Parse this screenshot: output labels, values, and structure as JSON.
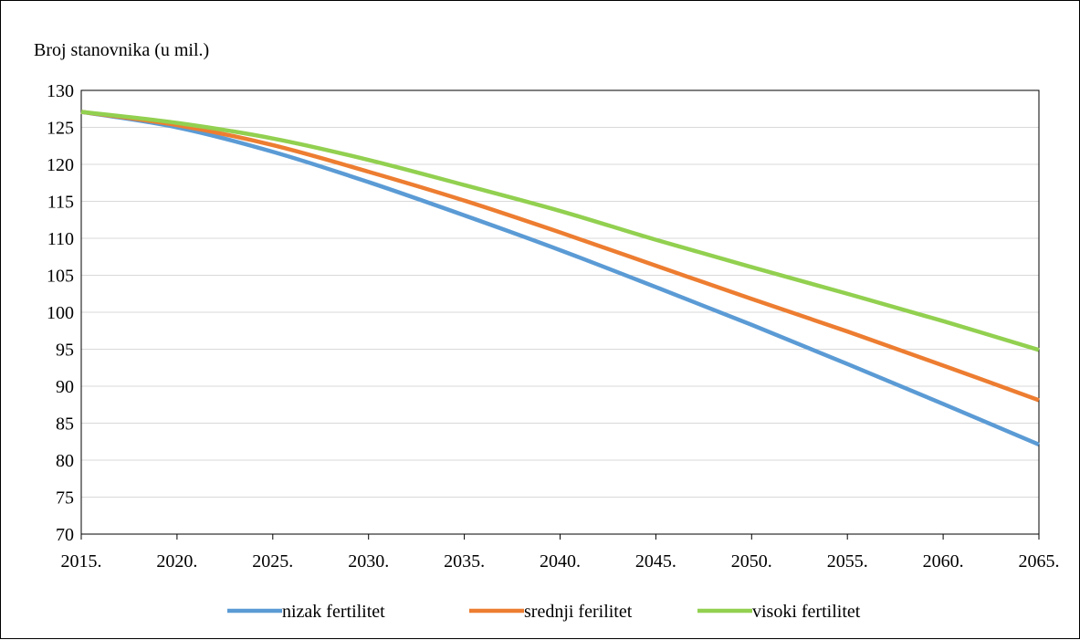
{
  "chart_data": {
    "type": "line",
    "ylabel": "Broj stanovnika (u mil.)",
    "xlabel": "",
    "x_ticks": [
      "2015.",
      "2020.",
      "2025.",
      "2030.",
      "2035.",
      "2040.",
      "2045.",
      "2050.",
      "2055.",
      "2060.",
      "2065."
    ],
    "y_ticks": [
      "70",
      "75",
      "80",
      "85",
      "90",
      "95",
      "100",
      "105",
      "110",
      "115",
      "120",
      "125",
      "130"
    ],
    "xlim": [
      2015,
      2065
    ],
    "ylim": [
      70,
      130
    ],
    "grid": true,
    "legend_position": "bottom",
    "x": [
      2015,
      2020,
      2025,
      2030,
      2035,
      2040,
      2045,
      2050,
      2055,
      2060,
      2065
    ],
    "series": [
      {
        "name": "nizak fertilitet",
        "color": "#5B9BD5",
        "values": [
          127.1,
          125.0,
          121.7,
          117.6,
          113.1,
          108.4,
          103.4,
          98.3,
          93.0,
          87.6,
          82.1
        ]
      },
      {
        "name": "srednji ferilitet",
        "color": "#ED7D31",
        "values": [
          127.1,
          125.3,
          122.6,
          119.0,
          115.1,
          110.8,
          106.3,
          101.8,
          97.4,
          92.8,
          88.1
        ]
      },
      {
        "name": "visoki fertilitet",
        "color": "#92D050",
        "values": [
          127.1,
          125.6,
          123.5,
          120.6,
          117.2,
          113.7,
          109.8,
          106.1,
          102.5,
          98.8,
          94.9
        ]
      }
    ]
  }
}
